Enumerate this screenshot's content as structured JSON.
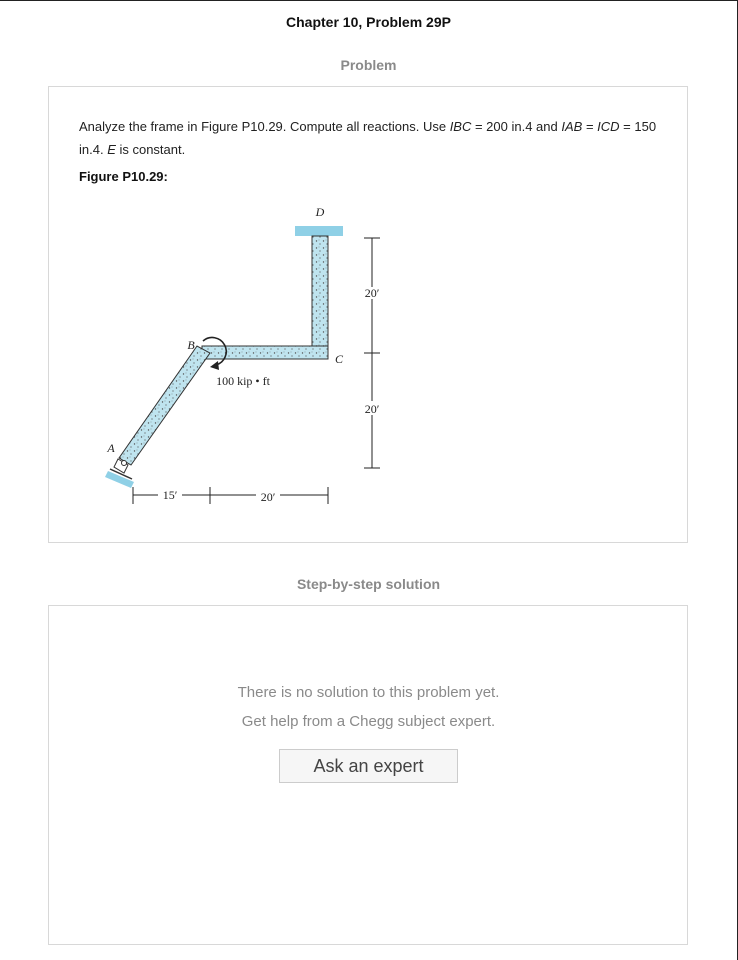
{
  "header": {
    "title": "Chapter 10, Problem 29P"
  },
  "problem": {
    "heading": "Problem",
    "text": [
      "Analyze the frame in Figure P10.29. Compute all reactions. Use ",
      "IBC",
      " = 200 in.4 and ",
      "IAB",
      " = ",
      "ICD",
      " = 150 in.4. ",
      "E",
      " is constant."
    ],
    "figure_label": "Figure P10.29:",
    "figure": {
      "labels": [
        "D",
        "C",
        "B",
        "A",
        "20′",
        "20′",
        "100 kip • ft",
        "15′",
        "20′"
      ]
    }
  },
  "solution": {
    "heading": "Step-by-step solution",
    "message": [
      "There is no solution to this problem yet.",
      "Get help from a Chegg subject expert."
    ],
    "button": "Ask an expert"
  }
}
